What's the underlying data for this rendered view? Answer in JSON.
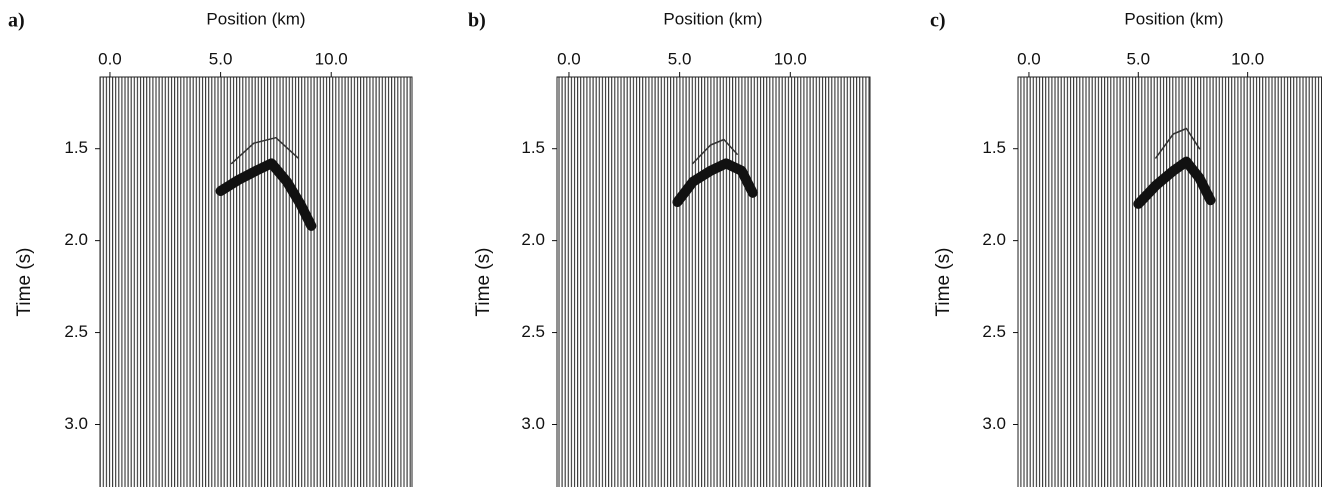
{
  "chart_data": [
    {
      "type": "wiggle",
      "panel_label": "a)",
      "xlabel": "Position (km)",
      "ylabel": "Time (s)",
      "xlim": [
        -0.45,
        13.65
      ],
      "xticks": [
        {
          "value": 0,
          "label": "0.0"
        },
        {
          "value": 5,
          "label": "5.0"
        },
        {
          "value": 10,
          "label": "10.0"
        }
      ],
      "ylim": [
        1.11,
        3.34
      ],
      "yticks": [
        1.5,
        {
          "value": 2,
          "label": "2.0"
        },
        2.5,
        {
          "value": 3,
          "label": "3.0"
        }
      ],
      "y_inverted": true,
      "series": [
        {
          "color": "#111111",
          "x": [
            5.0,
            5.8,
            6.6,
            7.3,
            8.0,
            8.6,
            9.1
          ],
          "values": [
            1.73,
            1.67,
            1.62,
            1.58,
            1.68,
            1.8,
            1.92
          ]
        },
        {
          "color": "#333333",
          "x": [
            5.5,
            6.5,
            7.5,
            8.5
          ],
          "values": [
            1.58,
            1.47,
            1.44,
            1.55
          ]
        }
      ]
    },
    {
      "type": "wiggle",
      "panel_label": "b)",
      "xlabel": "Position (km)",
      "ylabel": "Time (s)",
      "xlim": [
        -0.54,
        13.6
      ],
      "xticks": [
        {
          "value": 0,
          "label": "0.0"
        },
        {
          "value": 5,
          "label": "5.0"
        },
        {
          "value": 10,
          "label": "10.0"
        }
      ],
      "ylim": [
        1.11,
        3.34
      ],
      "yticks": [
        1.5,
        {
          "value": 2,
          "label": "2.0"
        },
        2.5,
        {
          "value": 3,
          "label": "3.0"
        }
      ],
      "y_inverted": true,
      "series": [
        {
          "color": "#111111",
          "x": [
            4.9,
            5.6,
            6.4,
            7.1,
            7.8,
            8.3
          ],
          "values": [
            1.79,
            1.68,
            1.62,
            1.58,
            1.62,
            1.74
          ]
        },
        {
          "color": "#333333",
          "x": [
            5.6,
            6.4,
            7.0,
            7.6
          ],
          "values": [
            1.58,
            1.48,
            1.45,
            1.53
          ]
        }
      ]
    },
    {
      "type": "wiggle",
      "panel_label": "c)",
      "xlabel": "Position (km)",
      "ylabel": "Time (s)",
      "xlim": [
        -0.5,
        13.4
      ],
      "xticks": [
        {
          "value": 0,
          "label": "0.0"
        },
        {
          "value": 5,
          "label": "5.0"
        },
        {
          "value": 10,
          "label": "10.0"
        }
      ],
      "ylim": [
        1.11,
        3.34
      ],
      "yticks": [
        1.5,
        {
          "value": 2,
          "label": "2.0"
        },
        2.5,
        {
          "value": 3,
          "label": "3.0"
        }
      ],
      "y_inverted": true,
      "series": [
        {
          "color": "#111111",
          "x": [
            5.0,
            5.8,
            6.6,
            7.2,
            7.8,
            8.3
          ],
          "values": [
            1.8,
            1.7,
            1.62,
            1.57,
            1.66,
            1.78
          ]
        },
        {
          "color": "#333333",
          "x": [
            5.8,
            6.6,
            7.2,
            7.8
          ],
          "values": [
            1.55,
            1.42,
            1.39,
            1.5
          ]
        }
      ]
    }
  ]
}
